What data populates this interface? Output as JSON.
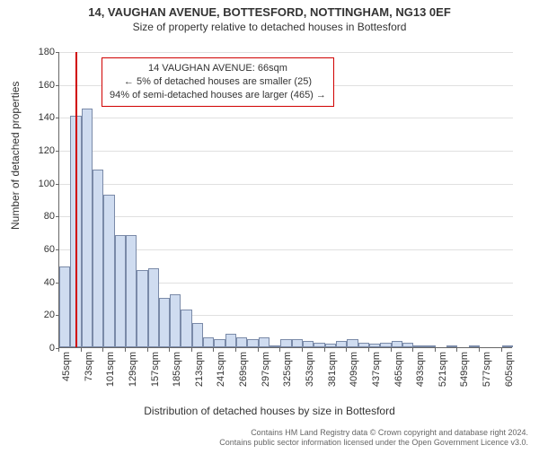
{
  "title": "14, VAUGHAN AVENUE, BOTTESFORD, NOTTINGHAM, NG13 0EF",
  "subtitle": "Size of property relative to detached houses in Bottesford",
  "chart": {
    "type": "histogram",
    "xlabel": "Distribution of detached houses by size in Bottesford",
    "ylabel": "Number of detached properties",
    "title_fontsize": 13,
    "subtitle_fontsize": 12,
    "label_fontsize": 12,
    "tick_fontsize": 11,
    "background_color": "#ffffff",
    "grid_color": "#e0e0e0",
    "axis_color": "#666666",
    "bar_color": "#cfdcf0",
    "bar_border_color": "#7a8aa8",
    "reference_line_color": "#d00000",
    "annotation_border_color": "#d00000",
    "ylim": [
      0,
      180
    ],
    "ytick_step": 20,
    "x_start": 45,
    "x_step": 14,
    "x_tick_every": 2,
    "bar_count": 41,
    "values": [
      49,
      141,
      145,
      108,
      93,
      68,
      68,
      47,
      48,
      30,
      32,
      23,
      15,
      6,
      5,
      8,
      6,
      5,
      6,
      1,
      5,
      5,
      4,
      3,
      2,
      4,
      5,
      3,
      2,
      3,
      4,
      3,
      1,
      1,
      0,
      1,
      0,
      1,
      0,
      0,
      1
    ],
    "reference_value_sqm": 66,
    "annotation": {
      "line1": "14 VAUGHAN AVENUE: 66sqm",
      "line2": "← 5% of detached houses are smaller (25)",
      "line3": "94% of semi-detached houses are larger (465) →",
      "fontsize": 11
    }
  },
  "footer": {
    "line1": "Contains HM Land Registry data © Crown copyright and database right 2024.",
    "line2": "Contains public sector information licensed under the Open Government Licence v3.0.",
    "fontsize": 9,
    "color": "#666666"
  }
}
